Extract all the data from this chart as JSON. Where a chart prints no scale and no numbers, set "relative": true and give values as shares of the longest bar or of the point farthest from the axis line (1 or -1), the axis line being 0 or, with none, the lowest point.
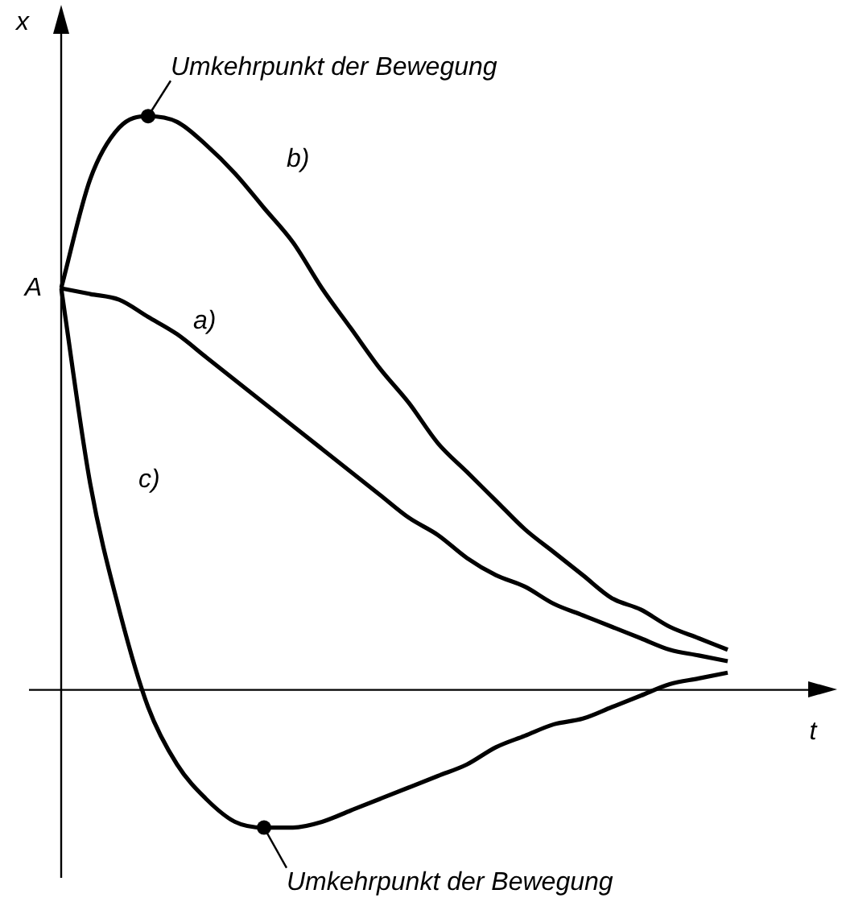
{
  "chart_data": {
    "type": "line",
    "relative": true,
    "xlabel": "t",
    "ylabel": "x",
    "categories": [
      null,
      null,
      null,
      null,
      null,
      null,
      null,
      null,
      null,
      null,
      null,
      null,
      null,
      null,
      null,
      null,
      null,
      null,
      null,
      null,
      null,
      null,
      null,
      null
    ],
    "series": [
      {
        "name": "a)",
        "color": "#000000",
        "values": [
          0.7,
          0.69,
          0.68,
          0.65,
          0.62,
          0.58,
          0.54,
          0.5,
          0.46,
          0.42,
          0.38,
          0.34,
          0.3,
          0.27,
          0.23,
          0.2,
          0.18,
          0.15,
          0.13,
          0.11,
          0.09,
          0.07,
          0.06,
          0.05
        ]
      },
      {
        "name": "b)",
        "color": "#000000",
        "values": [
          0.7,
          0.89,
          0.98,
          1,
          0.99,
          0.95,
          0.9,
          0.84,
          0.78,
          0.7,
          0.63,
          0.56,
          0.5,
          0.43,
          0.38,
          0.33,
          0.28,
          0.24,
          0.2,
          0.16,
          0.14,
          0.11,
          0.09,
          0.07
        ]
      },
      {
        "name": "c)",
        "color": "#000000",
        "values": [
          0.7,
          0.36,
          0.14,
          -0.03,
          -0.13,
          -0.19,
          -0.23,
          -0.24,
          -0.24,
          -0.23,
          -0.21,
          -0.19,
          -0.17,
          -0.15,
          -0.13,
          -0.1,
          -0.08,
          -0.06,
          -0.05,
          -0.03,
          -0.01,
          0.01,
          0.02,
          0.03
        ]
      }
    ],
    "annotations": [
      "A",
      "Umkehrpunkt der Bewegung",
      "Umkehrpunkt der Bewegung"
    ],
    "legend": false,
    "grid": false,
    "marker": "none",
    "line_style": "solid"
  }
}
